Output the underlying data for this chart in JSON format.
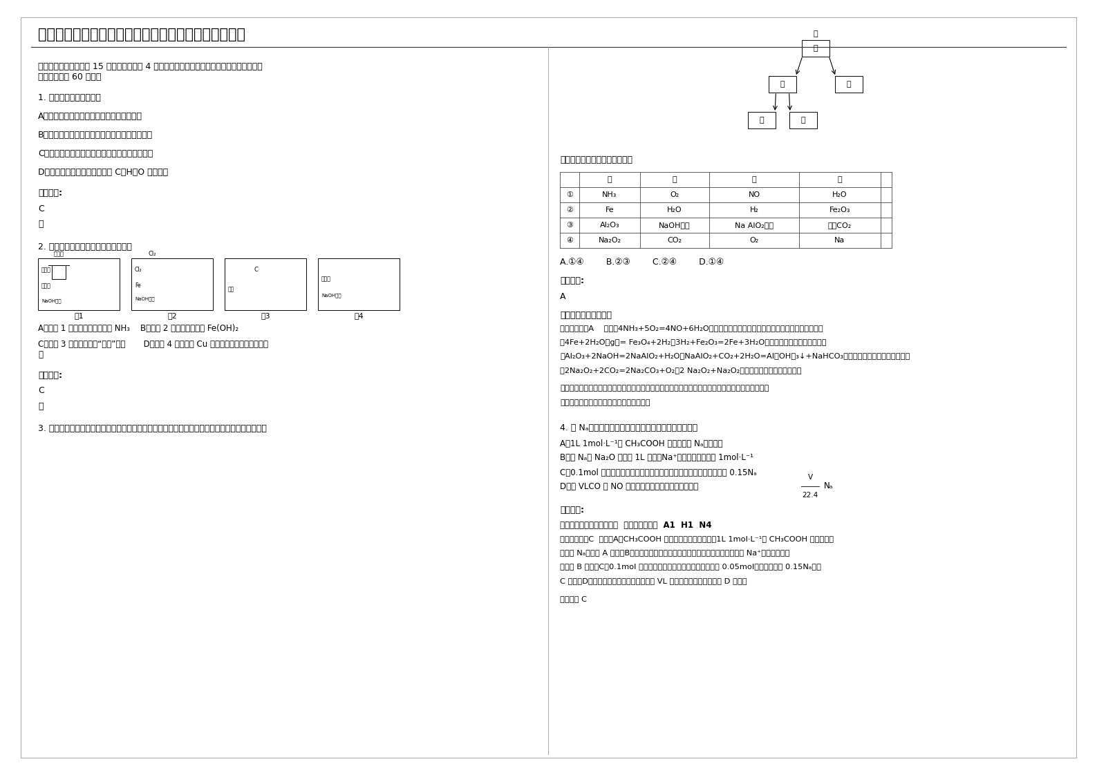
{
  "title": "湖南省邵阳市协和学校高三化学下学期期末试题含解析",
  "bg_color": "#ffffff",
  "text_color": "#000000",
  "title_fontsize": 15,
  "body_fontsize": 9
}
